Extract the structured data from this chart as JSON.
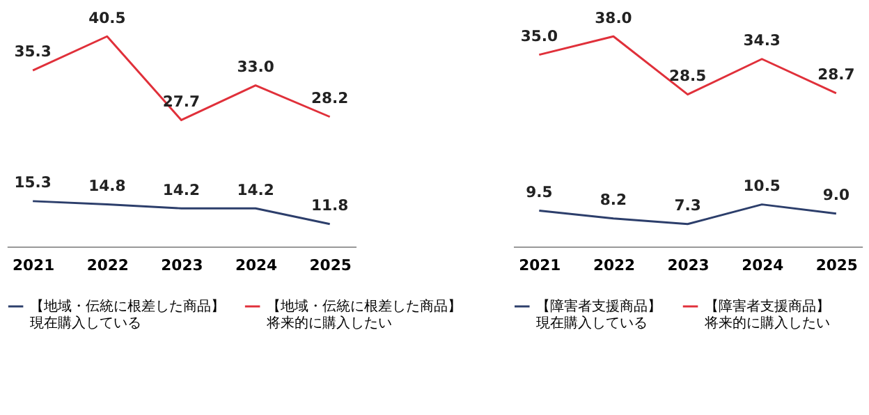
{
  "chart_data": [
    {
      "type": "line",
      "categories": [
        "2021",
        "2022",
        "2023",
        "2024",
        "2025"
      ],
      "grid": false,
      "legend": "bottom",
      "tick_labels": "x",
      "marker": "none",
      "line_style": "solid",
      "series": [
        {
          "name": "【地域・伝統に根差した商品】現在購入している",
          "color": "#2c3e6b",
          "values": [
            15.3,
            14.8,
            14.2,
            14.2,
            11.8
          ],
          "value_labels": [
            "15.3",
            "14.8",
            "14.2",
            "14.2",
            "11.8"
          ]
        },
        {
          "name": "【地域・伝統に根差した商品】将来的に購入したい",
          "color": "#e0303a",
          "values": [
            35.3,
            40.5,
            27.7,
            33.0,
            28.2
          ],
          "value_labels": [
            "35.3",
            "40.5",
            "27.7",
            "33.0",
            "28.2"
          ]
        }
      ]
    },
    {
      "type": "line",
      "categories": [
        "2021",
        "2022",
        "2023",
        "2024",
        "2025"
      ],
      "grid": false,
      "legend": "bottom",
      "tick_labels": "x",
      "marker": "none",
      "line_style": "solid",
      "series": [
        {
          "name": "【障害者支援商品】現在購入している",
          "color": "#2c3e6b",
          "values": [
            9.5,
            8.2,
            7.3,
            10.5,
            9.0
          ],
          "value_labels": [
            "9.5",
            "8.2",
            "7.3",
            "10.5",
            "9.0"
          ]
        },
        {
          "name": "【障害者支援商品】将来的に購入したい",
          "color": "#e0303a",
          "values": [
            35.0,
            38.0,
            28.5,
            34.3,
            28.7
          ],
          "value_labels": [
            "35.0",
            "38.0",
            "28.5",
            "34.3",
            "28.7"
          ]
        }
      ]
    }
  ]
}
